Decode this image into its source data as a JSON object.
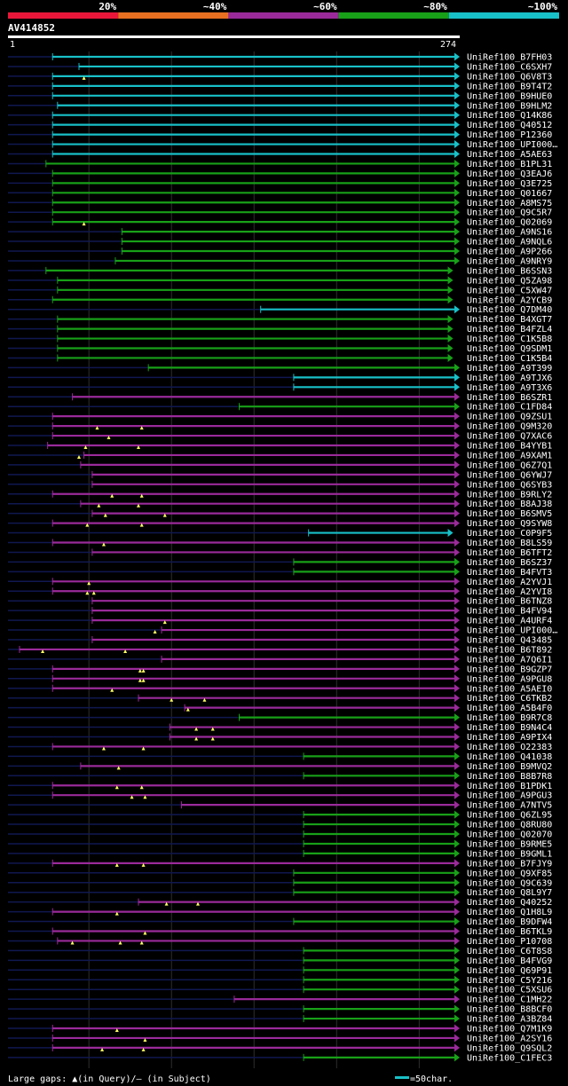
{
  "chart_data": {
    "type": "blast-alignment",
    "query": "AV414852",
    "query_start": "1",
    "query_end": "274",
    "query_length": 274,
    "identity_scale": [
      {
        "label": "20%",
        "color": "#e8173a"
      },
      {
        "label": "~40%",
        "color": "#e87020"
      },
      {
        "label": "~60%",
        "color": "#9a2a9a"
      },
      {
        "label": "~80%",
        "color": "#18a018"
      },
      {
        "label": "~100%",
        "color": "#18c0c8"
      }
    ],
    "legend": {
      "gaps_text": "Large gaps: ▲(in Query)/– (in Subject)",
      "scale_text": "=50char.",
      "scale_color": "#18c0c8",
      "scale_chars": 50
    },
    "hits": [
      {
        "name": "UniRef100_B7FH03",
        "start": 28,
        "end": 274,
        "identity": 100,
        "inserts": []
      },
      {
        "name": "UniRef100_C6SXH7",
        "start": 44,
        "end": 274,
        "identity": 100,
        "inserts": []
      },
      {
        "name": "UniRef100_Q6V8T3",
        "start": 28,
        "end": 274,
        "identity": 100,
        "inserts": [
          47
        ]
      },
      {
        "name": "UniRef100_B9T4T2",
        "start": 28,
        "end": 274,
        "identity": 100,
        "inserts": []
      },
      {
        "name": "UniRef100_B9HUE0",
        "start": 28,
        "end": 274,
        "identity": 100,
        "inserts": []
      },
      {
        "name": "UniRef100_B9HLM2",
        "start": 31,
        "end": 274,
        "identity": 100,
        "inserts": []
      },
      {
        "name": "UniRef100_Q14K86",
        "start": 28,
        "end": 274,
        "identity": 100,
        "inserts": []
      },
      {
        "name": "UniRef100_Q40512",
        "start": 28,
        "end": 274,
        "identity": 100,
        "inserts": []
      },
      {
        "name": "UniRef100_P12360",
        "start": 28,
        "end": 274,
        "identity": 100,
        "inserts": []
      },
      {
        "name": "UniRef100_UPI000…",
        "start": 28,
        "end": 274,
        "identity": 100,
        "inserts": []
      },
      {
        "name": "UniRef100_A5AE63",
        "start": 28,
        "end": 274,
        "identity": 100,
        "inserts": []
      },
      {
        "name": "UniRef100_B1PL31",
        "start": 24,
        "end": 274,
        "identity": 80,
        "inserts": []
      },
      {
        "name": "UniRef100_Q3EAJ6",
        "start": 28,
        "end": 274,
        "identity": 80,
        "inserts": []
      },
      {
        "name": "UniRef100_Q3E725",
        "start": 28,
        "end": 274,
        "identity": 80,
        "inserts": []
      },
      {
        "name": "UniRef100_Q01667",
        "start": 28,
        "end": 274,
        "identity": 80,
        "inserts": []
      },
      {
        "name": "UniRef100_A8MS75",
        "start": 28,
        "end": 274,
        "identity": 80,
        "inserts": []
      },
      {
        "name": "UniRef100_Q9C5R7",
        "start": 28,
        "end": 274,
        "identity": 80,
        "inserts": []
      },
      {
        "name": "UniRef100_Q02069",
        "start": 28,
        "end": 274,
        "identity": 80,
        "inserts": [
          47
        ]
      },
      {
        "name": "UniRef100_A9NS16",
        "start": 70,
        "end": 274,
        "identity": 80,
        "inserts": []
      },
      {
        "name": "UniRef100_A9NQL6",
        "start": 70,
        "end": 274,
        "identity": 80,
        "inserts": []
      },
      {
        "name": "UniRef100_A9P266",
        "start": 70,
        "end": 274,
        "identity": 80,
        "inserts": []
      },
      {
        "name": "UniRef100_A9NRY9",
        "start": 66,
        "end": 274,
        "identity": 80,
        "inserts": []
      },
      {
        "name": "UniRef100_B6SSN3",
        "start": 24,
        "end": 270,
        "identity": 80,
        "inserts": []
      },
      {
        "name": "UniRef100_Q5ZA98",
        "start": 31,
        "end": 270,
        "identity": 80,
        "inserts": []
      },
      {
        "name": "UniRef100_C5XW47",
        "start": 31,
        "end": 270,
        "identity": 80,
        "inserts": []
      },
      {
        "name": "UniRef100_A2YCB9",
        "start": 28,
        "end": 270,
        "identity": 80,
        "inserts": []
      },
      {
        "name": "UniRef100_Q7DM40",
        "start": 154,
        "end": 274,
        "identity": 100,
        "inserts": []
      },
      {
        "name": "UniRef100_B4XGT7",
        "start": 31,
        "end": 270,
        "identity": 80,
        "inserts": []
      },
      {
        "name": "UniRef100_B4FZL4",
        "start": 31,
        "end": 270,
        "identity": 80,
        "inserts": []
      },
      {
        "name": "UniRef100_C1K5B8",
        "start": 31,
        "end": 270,
        "identity": 80,
        "inserts": []
      },
      {
        "name": "UniRef100_Q9SDM1",
        "start": 31,
        "end": 270,
        "identity": 80,
        "inserts": []
      },
      {
        "name": "UniRef100_C1K5B4",
        "start": 31,
        "end": 270,
        "identity": 80,
        "inserts": []
      },
      {
        "name": "UniRef100_A9T399",
        "start": 86,
        "end": 274,
        "identity": 80,
        "inserts": []
      },
      {
        "name": "UniRef100_A9TJX6",
        "start": 174,
        "end": 274,
        "identity": 100,
        "inserts": []
      },
      {
        "name": "UniRef100_A9T3X6",
        "start": 174,
        "end": 274,
        "identity": 100,
        "inserts": []
      },
      {
        "name": "UniRef100_B6SZR1",
        "start": 40,
        "end": 274,
        "identity": 60,
        "inserts": []
      },
      {
        "name": "UniRef100_C1FD84",
        "start": 141,
        "end": 274,
        "identity": 80,
        "inserts": []
      },
      {
        "name": "UniRef100_Q9ZSU1",
        "start": 28,
        "end": 274,
        "identity": 60,
        "inserts": []
      },
      {
        "name": "UniRef100_Q9M320",
        "start": 28,
        "end": 274,
        "identity": 60,
        "inserts": [
          55,
          82
        ]
      },
      {
        "name": "UniRef100_Q7XAC6",
        "start": 28,
        "end": 274,
        "identity": 60,
        "inserts": [
          62
        ]
      },
      {
        "name": "UniRef100_B4YYB1",
        "start": 25,
        "end": 274,
        "identity": 60,
        "inserts": [
          48,
          80
        ]
      },
      {
        "name": "UniRef100_A9XAM1",
        "start": 47,
        "end": 274,
        "identity": 60,
        "inserts": [
          44
        ]
      },
      {
        "name": "UniRef100_Q6Z7Q1",
        "start": 45,
        "end": 274,
        "identity": 60,
        "inserts": []
      },
      {
        "name": "UniRef100_Q6YWJ7",
        "start": 52,
        "end": 274,
        "identity": 60,
        "inserts": []
      },
      {
        "name": "UniRef100_Q6SYB3",
        "start": 52,
        "end": 274,
        "identity": 60,
        "inserts": []
      },
      {
        "name": "UniRef100_B9RLY2",
        "start": 28,
        "end": 274,
        "identity": 60,
        "inserts": [
          64,
          82
        ]
      },
      {
        "name": "UniRef100_B8AJ38",
        "start": 45,
        "end": 274,
        "identity": 60,
        "inserts": [
          56,
          80
        ]
      },
      {
        "name": "UniRef100_B6SMV5",
        "start": 52,
        "end": 274,
        "identity": 60,
        "inserts": [
          60,
          96
        ]
      },
      {
        "name": "UniRef100_Q9SYW8",
        "start": 28,
        "end": 274,
        "identity": 60,
        "inserts": [
          49,
          82
        ]
      },
      {
        "name": "UniRef100_C0P9F5",
        "start": 183,
        "end": 270,
        "identity": 100,
        "inserts": []
      },
      {
        "name": "UniRef100_B8LS59",
        "start": 28,
        "end": 274,
        "identity": 60,
        "inserts": [
          59
        ]
      },
      {
        "name": "UniRef100_B6TFT2",
        "start": 52,
        "end": 274,
        "identity": 60,
        "inserts": []
      },
      {
        "name": "UniRef100_B6SZ37",
        "start": 174,
        "end": 274,
        "identity": 80,
        "inserts": []
      },
      {
        "name": "UniRef100_B4FVT3",
        "start": 174,
        "end": 274,
        "identity": 80,
        "inserts": []
      },
      {
        "name": "UniRef100_A2YVJ1",
        "start": 28,
        "end": 274,
        "identity": 60,
        "inserts": [
          50
        ]
      },
      {
        "name": "UniRef100_A2YVI8",
        "start": 28,
        "end": 274,
        "identity": 60,
        "inserts": [
          49,
          53
        ]
      },
      {
        "name": "UniRef100_B6TNZ8",
        "start": 52,
        "end": 274,
        "identity": 60,
        "inserts": []
      },
      {
        "name": "UniRef100_B4FV94",
        "start": 52,
        "end": 274,
        "identity": 60,
        "inserts": []
      },
      {
        "name": "UniRef100_A4URF4",
        "start": 52,
        "end": 274,
        "identity": 60,
        "inserts": [
          96
        ]
      },
      {
        "name": "UniRef100_UPI000…",
        "start": 94,
        "end": 274,
        "identity": 60,
        "inserts": [
          90
        ]
      },
      {
        "name": "UniRef100_Q43485",
        "start": 52,
        "end": 274,
        "identity": 60,
        "inserts": []
      },
      {
        "name": "UniRef100_B6T892",
        "start": 8,
        "end": 274,
        "identity": 60,
        "inserts": [
          22,
          72
        ]
      },
      {
        "name": "UniRef100_A7Q6I1",
        "start": 94,
        "end": 274,
        "identity": 60,
        "inserts": []
      },
      {
        "name": "UniRef100_B9GZP7",
        "start": 28,
        "end": 274,
        "identity": 60,
        "inserts": [
          81,
          83
        ]
      },
      {
        "name": "UniRef100_A9PGU8",
        "start": 28,
        "end": 274,
        "identity": 60,
        "inserts": [
          81,
          83
        ]
      },
      {
        "name": "UniRef100_A5AEI0",
        "start": 28,
        "end": 274,
        "identity": 60,
        "inserts": [
          64
        ]
      },
      {
        "name": "UniRef100_C6TKB2",
        "start": 80,
        "end": 274,
        "identity": 60,
        "inserts": [
          100,
          120
        ]
      },
      {
        "name": "UniRef100_A5B4F0",
        "start": 108,
        "end": 274,
        "identity": 60,
        "inserts": [
          110
        ]
      },
      {
        "name": "UniRef100_B9R7C8",
        "start": 141,
        "end": 274,
        "identity": 80,
        "inserts": []
      },
      {
        "name": "UniRef100_B9N4C4",
        "start": 99,
        "end": 274,
        "identity": 60,
        "inserts": [
          115,
          125
        ]
      },
      {
        "name": "UniRef100_A9PIX4",
        "start": 99,
        "end": 274,
        "identity": 60,
        "inserts": [
          115,
          125
        ]
      },
      {
        "name": "UniRef100_O22383",
        "start": 28,
        "end": 274,
        "identity": 60,
        "inserts": [
          59,
          83
        ]
      },
      {
        "name": "UniRef100_Q41038",
        "start": 180,
        "end": 274,
        "identity": 80,
        "inserts": []
      },
      {
        "name": "UniRef100_B9MVQ2",
        "start": 45,
        "end": 274,
        "identity": 60,
        "inserts": [
          68
        ]
      },
      {
        "name": "UniRef100_B8B7R8",
        "start": 180,
        "end": 274,
        "identity": 80,
        "inserts": []
      },
      {
        "name": "UniRef100_B1PDK1",
        "start": 28,
        "end": 274,
        "identity": 60,
        "inserts": [
          67,
          82
        ]
      },
      {
        "name": "UniRef100_A9PGU3",
        "start": 28,
        "end": 274,
        "identity": 60,
        "inserts": [
          76,
          84
        ]
      },
      {
        "name": "UniRef100_A7NTV5",
        "start": 106,
        "end": 274,
        "identity": 60,
        "inserts": []
      },
      {
        "name": "UniRef100_Q6ZL95",
        "start": 180,
        "end": 274,
        "identity": 80,
        "inserts": []
      },
      {
        "name": "UniRef100_Q8RU80",
        "start": 180,
        "end": 274,
        "identity": 80,
        "inserts": []
      },
      {
        "name": "UniRef100_Q02070",
        "start": 180,
        "end": 274,
        "identity": 80,
        "inserts": []
      },
      {
        "name": "UniRef100_B9RME5",
        "start": 180,
        "end": 274,
        "identity": 80,
        "inserts": []
      },
      {
        "name": "UniRef100_B9GML1",
        "start": 180,
        "end": 274,
        "identity": 80,
        "inserts": []
      },
      {
        "name": "UniRef100_B7FJY9",
        "start": 28,
        "end": 274,
        "identity": 60,
        "inserts": [
          67,
          83
        ]
      },
      {
        "name": "UniRef100_Q9XF85",
        "start": 174,
        "end": 274,
        "identity": 80,
        "inserts": []
      },
      {
        "name": "UniRef100_Q9C639",
        "start": 174,
        "end": 274,
        "identity": 80,
        "inserts": []
      },
      {
        "name": "UniRef100_Q8L9Y7",
        "start": 174,
        "end": 274,
        "identity": 80,
        "inserts": []
      },
      {
        "name": "UniRef100_Q40252",
        "start": 80,
        "end": 274,
        "identity": 60,
        "inserts": [
          97,
          116
        ]
      },
      {
        "name": "UniRef100_Q1H8L9",
        "start": 28,
        "end": 274,
        "identity": 60,
        "inserts": [
          67
        ]
      },
      {
        "name": "UniRef100_B9DFW4",
        "start": 174,
        "end": 274,
        "identity": 80,
        "inserts": []
      },
      {
        "name": "UniRef100_B6TKL9",
        "start": 28,
        "end": 274,
        "identity": 60,
        "inserts": [
          84
        ]
      },
      {
        "name": "UniRef100_P10708",
        "start": 31,
        "end": 274,
        "identity": 60,
        "inserts": [
          40,
          69,
          82
        ]
      },
      {
        "name": "UniRef100_C6T8S8",
        "start": 180,
        "end": 274,
        "identity": 80,
        "inserts": []
      },
      {
        "name": "UniRef100_B4FVG9",
        "start": 180,
        "end": 274,
        "identity": 80,
        "inserts": []
      },
      {
        "name": "UniRef100_Q69P91",
        "start": 180,
        "end": 274,
        "identity": 80,
        "inserts": []
      },
      {
        "name": "UniRef100_C5Y216",
        "start": 180,
        "end": 274,
        "identity": 80,
        "inserts": []
      },
      {
        "name": "UniRef100_C5XSU6",
        "start": 180,
        "end": 274,
        "identity": 80,
        "inserts": []
      },
      {
        "name": "UniRef100_C1MH22",
        "start": 138,
        "end": 274,
        "identity": 60,
        "inserts": []
      },
      {
        "name": "UniRef100_B8BCF0",
        "start": 180,
        "end": 274,
        "identity": 80,
        "inserts": []
      },
      {
        "name": "UniRef100_A3BZ84",
        "start": 180,
        "end": 274,
        "identity": 80,
        "inserts": []
      },
      {
        "name": "UniRef100_Q7M1K9",
        "start": 28,
        "end": 274,
        "identity": 60,
        "inserts": [
          67
        ]
      },
      {
        "name": "UniRef100_A2SY16",
        "start": 28,
        "end": 274,
        "identity": 60,
        "inserts": [
          84
        ]
      },
      {
        "name": "UniRef100_Q9SQL2",
        "start": 28,
        "end": 274,
        "identity": 60,
        "inserts": [
          58,
          83
        ]
      },
      {
        "name": "UniRef100_C1FEC3",
        "start": 180,
        "end": 274,
        "identity": 80,
        "inserts": []
      }
    ]
  }
}
